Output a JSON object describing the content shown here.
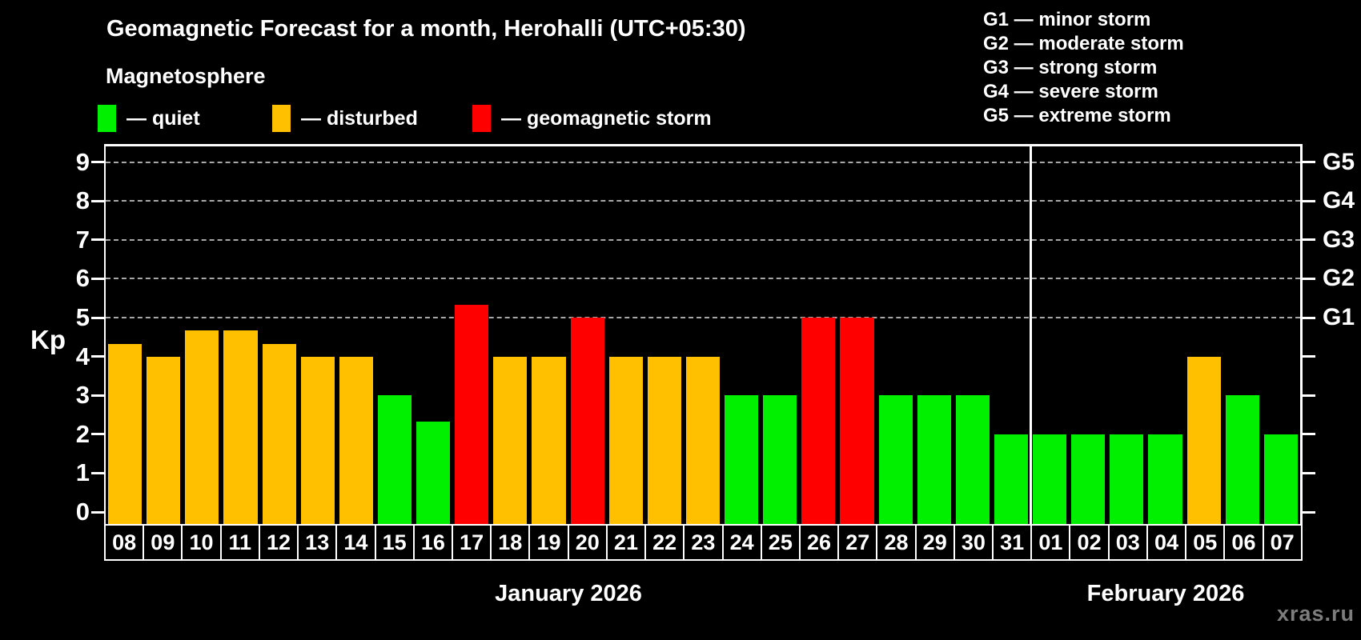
{
  "header": {
    "title": "Geomagnetic Forecast for a month, Herohalli (UTC+05:30)",
    "subtitle": "Magnetosphere",
    "legend": [
      {
        "key": "quiet",
        "label": "— quiet",
        "color": "#00f000"
      },
      {
        "key": "disturbed",
        "label": "— disturbed",
        "color": "#ffc000"
      },
      {
        "key": "storm",
        "label": "— geomagnetic storm",
        "color": "#ff0000"
      }
    ],
    "g_legend": [
      "G1 — minor storm",
      "G2 — moderate storm",
      "G3 — strong storm",
      "G4 — severe storm",
      "G5 — extreme storm"
    ]
  },
  "watermark": "xras.ru",
  "chart_data": {
    "type": "bar",
    "title": "Geomagnetic Forecast for a month, Herohalli (UTC+05:30)",
    "ylabel": "Kp",
    "ylim": [
      -0.35,
      9.4
    ],
    "y_ticks": [
      0,
      1,
      2,
      3,
      4,
      5,
      6,
      7,
      8,
      9
    ],
    "grid": "horizontal dashed gridlines only at Kp 5-9 (G1-G5 levels)",
    "right_axis_labels": [
      {
        "label": "G1",
        "kp": 5
      },
      {
        "label": "G2",
        "kp": 6
      },
      {
        "label": "G3",
        "kp": 7
      },
      {
        "label": "G4",
        "kp": 8
      },
      {
        "label": "G5",
        "kp": 9
      }
    ],
    "months": [
      {
        "label": "January 2026",
        "days": 24
      },
      {
        "label": "February 2026",
        "days": 7
      }
    ],
    "categories": [
      "08",
      "09",
      "10",
      "11",
      "12",
      "13",
      "14",
      "15",
      "16",
      "17",
      "18",
      "19",
      "20",
      "21",
      "22",
      "23",
      "24",
      "25",
      "26",
      "27",
      "28",
      "29",
      "30",
      "31",
      "01",
      "02",
      "03",
      "04",
      "05",
      "06",
      "07"
    ],
    "values": [
      4.33,
      4,
      4.67,
      4.67,
      4.33,
      4,
      4,
      3,
      2.33,
      5.33,
      4,
      4,
      5,
      4,
      4,
      4,
      3,
      3,
      5,
      5,
      3,
      3,
      3,
      2,
      2,
      2,
      2,
      2,
      4,
      3,
      2
    ],
    "status": [
      "disturbed",
      "disturbed",
      "disturbed",
      "disturbed",
      "disturbed",
      "disturbed",
      "disturbed",
      "quiet",
      "quiet",
      "storm",
      "disturbed",
      "disturbed",
      "storm",
      "disturbed",
      "disturbed",
      "disturbed",
      "quiet",
      "quiet",
      "storm",
      "storm",
      "quiet",
      "quiet",
      "quiet",
      "quiet",
      "quiet",
      "quiet",
      "quiet",
      "quiet",
      "disturbed",
      "quiet",
      "quiet"
    ],
    "colors": {
      "quiet": "#00f000",
      "disturbed": "#ffc000",
      "storm": "#ff0000"
    },
    "grid_kp": [
      5,
      6,
      7,
      8,
      9
    ]
  }
}
